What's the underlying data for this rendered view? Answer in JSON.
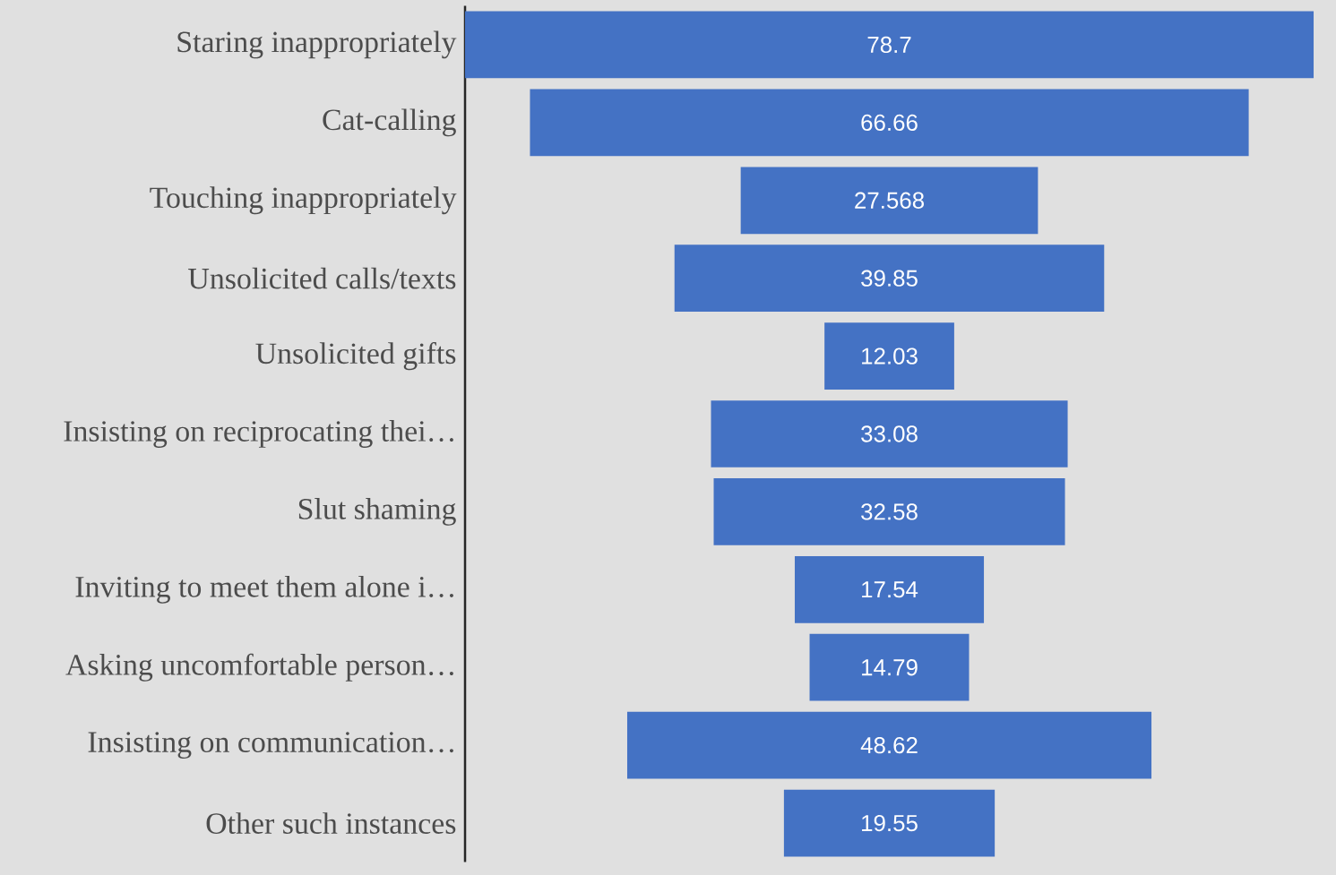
{
  "chart_data": {
    "type": "other",
    "categories": [
      "Staring inappropriately",
      "Cat-calling",
      "Touching inappropriately",
      "Unsolicited calls/texts",
      "Unsolicited gifts",
      "Insisting on reciprocating thei…",
      "Slut shaming",
      "Inviting to meet them alone i…",
      "Asking uncomfortable person…",
      "Insisting on communication…",
      "Other such instances"
    ],
    "values": [
      78.7,
      66.66,
      27.568,
      39.85,
      12.03,
      33.08,
      32.58,
      17.54,
      14.79,
      48.62,
      19.55
    ],
    "color": "#4472c4",
    "data_labels": true
  }
}
